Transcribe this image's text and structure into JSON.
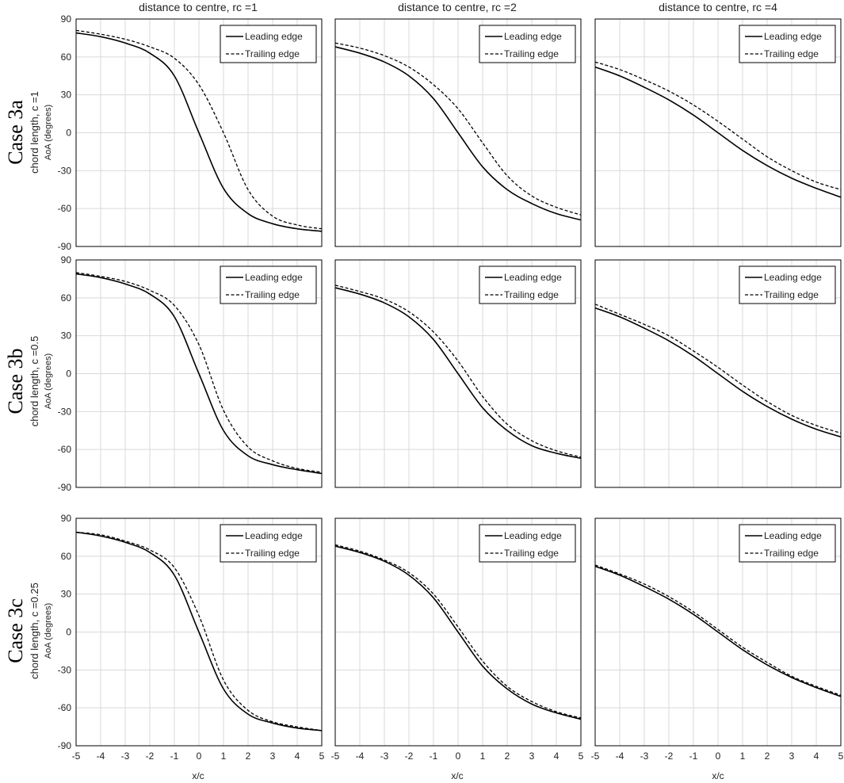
{
  "figure": {
    "x_axis_label": "x/c",
    "y_axis_label": "AoA (degrees)",
    "columns": [
      {
        "title": "distance to centre, rc =1"
      },
      {
        "title": "distance to centre, rc =2"
      },
      {
        "title": "distance to centre, rc =4"
      }
    ],
    "rows": [
      {
        "case": "Case 3a",
        "chord": "chord length, c =1"
      },
      {
        "case": "Case 3b",
        "chord": "chord length, c =0.5"
      },
      {
        "case": "Case 3c",
        "chord": "chord length, c =0.25"
      }
    ],
    "legend": {
      "leading": "Leading edge",
      "trailing": "Trailing edge"
    },
    "colors": {
      "line": "#000000",
      "grid": "#d9d9d9",
      "frame": "#000000"
    }
  },
  "chart_data": {
    "type": "line",
    "layout": "3x3 small multiples",
    "xlabel": "x/c",
    "ylabel": "AoA (degrees)",
    "xlim": [
      -5,
      5
    ],
    "ylim": [
      -90,
      90
    ],
    "xticks": [
      -5,
      -4,
      -3,
      -2,
      -1,
      0,
      1,
      2,
      3,
      4,
      5
    ],
    "yticks": [
      -90,
      -60,
      -30,
      0,
      30,
      60,
      90
    ],
    "grid": true,
    "legend_position": "top-right",
    "series_names": [
      "Leading edge",
      "Trailing edge"
    ],
    "x": [
      -5,
      -4,
      -3,
      -2,
      -1,
      0,
      1,
      2,
      3,
      4,
      5
    ],
    "panels": [
      {
        "row": "Case 3a",
        "column": "distance to centre, rc =1",
        "leading": [
          79,
          76,
          71,
          63,
          45,
          0,
          -44,
          -64,
          -72,
          -76,
          -78
        ],
        "trailing": [
          81,
          78,
          74,
          68,
          59,
          38,
          0,
          -45,
          -66,
          -73,
          -76
        ]
      },
      {
        "row": "Case 3a",
        "column": "distance to centre, rc =2",
        "leading": [
          68,
          63,
          56,
          45,
          27,
          0,
          -27,
          -45,
          -56,
          -64,
          -69
        ],
        "trailing": [
          71,
          67,
          61,
          52,
          38,
          19,
          -8,
          -34,
          -50,
          -59,
          -65
        ]
      },
      {
        "row": "Case 3a",
        "column": "distance to centre, rc =4",
        "leading": [
          52,
          45,
          36,
          26,
          14,
          0,
          -14,
          -26,
          -36,
          -44,
          -51
        ],
        "trailing": [
          56,
          50,
          42,
          33,
          22,
          9,
          -5,
          -19,
          -30,
          -39,
          -45
        ]
      },
      {
        "row": "Case 3b",
        "column": "distance to centre, rc =1",
        "leading": [
          79,
          76,
          71,
          63,
          45,
          0,
          -45,
          -65,
          -72,
          -76,
          -79
        ],
        "trailing": [
          80,
          77,
          73,
          66,
          54,
          23,
          -29,
          -58,
          -69,
          -75,
          -78
        ]
      },
      {
        "row": "Case 3b",
        "column": "distance to centre, rc =2",
        "leading": [
          68,
          63,
          56,
          45,
          27,
          0,
          -27,
          -45,
          -57,
          -63,
          -67
        ],
        "trailing": [
          70,
          65,
          59,
          49,
          33,
          10,
          -18,
          -40,
          -53,
          -61,
          -66
        ]
      },
      {
        "row": "Case 3b",
        "column": "distance to centre, rc =4",
        "leading": [
          52,
          45,
          36,
          26,
          14,
          0,
          -14,
          -26,
          -36,
          -44,
          -50
        ],
        "trailing": [
          55,
          47,
          39,
          30,
          18,
          5,
          -9,
          -22,
          -33,
          -41,
          -47
        ]
      },
      {
        "row": "Case 3c",
        "column": "distance to centre, rc =1",
        "leading": [
          79,
          76,
          71,
          63,
          45,
          0,
          -45,
          -65,
          -72,
          -76,
          -78
        ],
        "trailing": [
          79,
          77,
          72,
          65,
          51,
          13,
          -38,
          -62,
          -71,
          -75,
          -78
        ]
      },
      {
        "row": "Case 3c",
        "column": "distance to centre, rc =2",
        "leading": [
          68,
          63,
          56,
          45,
          27,
          0,
          -27,
          -45,
          -57,
          -64,
          -69
        ],
        "trailing": [
          69,
          64,
          57,
          47,
          30,
          4,
          -23,
          -43,
          -55,
          -63,
          -68
        ]
      },
      {
        "row": "Case 3c",
        "column": "distance to centre, rc =4",
        "leading": [
          52,
          45,
          36,
          26,
          14,
          0,
          -14,
          -26,
          -36,
          -44,
          -51
        ],
        "trailing": [
          53,
          46,
          38,
          28,
          16,
          2,
          -12,
          -24,
          -35,
          -43,
          -50
        ]
      }
    ]
  }
}
